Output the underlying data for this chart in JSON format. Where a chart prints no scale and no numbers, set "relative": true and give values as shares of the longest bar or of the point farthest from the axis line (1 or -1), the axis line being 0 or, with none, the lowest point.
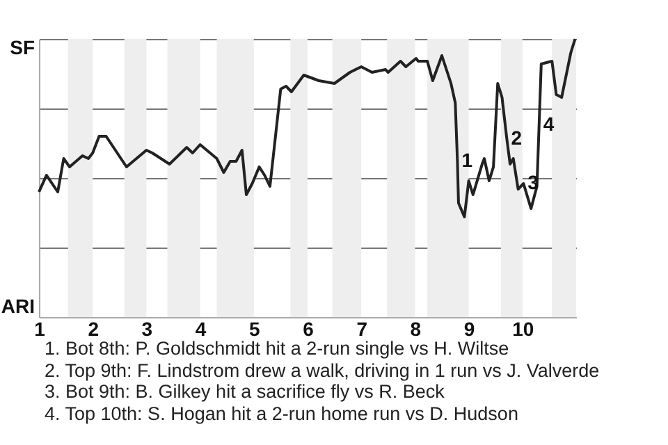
{
  "chart_data": {
    "type": "line",
    "relative": true,
    "x": [
      1.0,
      1.14,
      1.35,
      1.46,
      1.57,
      1.81,
      1.92,
      2.0,
      2.12,
      2.25,
      2.63,
      3.0,
      3.11,
      3.43,
      3.75,
      3.86,
      4.0,
      4.31,
      4.44,
      4.56,
      4.67,
      4.78,
      4.86,
      4.97,
      5.1,
      5.2,
      5.3,
      5.5,
      5.6,
      5.7,
      5.93,
      6.21,
      6.5,
      6.79,
      7.0,
      7.2,
      7.45,
      7.5,
      7.73,
      7.83,
      8.02,
      8.06,
      8.23,
      8.33,
      8.5,
      8.67,
      8.75,
      8.79,
      8.81,
      8.92,
      9.0,
      9.08,
      9.25,
      9.29,
      9.38,
      9.46,
      9.54,
      9.62,
      9.71,
      9.77,
      9.83,
      9.92,
      10.02,
      10.16,
      10.27,
      10.31,
      10.35,
      10.55,
      10.63,
      10.73,
      10.9,
      10.98
    ],
    "series": [
      {
        "color": "#222222",
        "values": [
          0.45,
          0.51,
          0.45,
          0.57,
          0.54,
          0.58,
          0.57,
          0.59,
          0.65,
          0.65,
          0.54,
          0.6,
          0.59,
          0.55,
          0.61,
          0.59,
          0.62,
          0.57,
          0.52,
          0.56,
          0.56,
          0.6,
          0.44,
          0.48,
          0.54,
          0.51,
          0.47,
          0.82,
          0.83,
          0.81,
          0.87,
          0.85,
          0.84,
          0.88,
          0.9,
          0.88,
          0.89,
          0.88,
          0.92,
          0.9,
          0.93,
          0.92,
          0.92,
          0.85,
          0.94,
          0.84,
          0.77,
          0.56,
          0.41,
          0.36,
          0.49,
          0.44,
          0.55,
          0.57,
          0.49,
          0.54,
          0.84,
          0.79,
          0.64,
          0.55,
          0.57,
          0.46,
          0.48,
          0.39,
          0.47,
          0.69,
          0.91,
          0.92,
          0.8,
          0.79,
          0.95,
          1.0
        ]
      }
    ],
    "xlim": [
      1,
      11
    ],
    "xticks": [
      1,
      2,
      3,
      4,
      5,
      6,
      7,
      8,
      9,
      10
    ],
    "grid": "y",
    "marker": "none",
    "bands": [
      {
        "axis": "x",
        "from": 1.54,
        "to": 2,
        "color": "#eeeeee"
      },
      {
        "axis": "x",
        "from": 2.59,
        "to": 3,
        "color": "#eeeeee"
      },
      {
        "axis": "x",
        "from": 3.39,
        "to": 4,
        "color": "#eeeeee"
      },
      {
        "axis": "x",
        "from": 4.31,
        "to": 5,
        "color": "#eeeeee"
      },
      {
        "axis": "x",
        "from": 5.68,
        "to": 6,
        "color": "#eeeeee"
      },
      {
        "axis": "x",
        "from": 6.46,
        "to": 7,
        "color": "#eeeeee"
      },
      {
        "axis": "x",
        "from": 7.48,
        "to": 8,
        "color": "#eeeeee"
      },
      {
        "axis": "x",
        "from": 8.23,
        "to": 9,
        "color": "#eeeeee"
      },
      {
        "axis": "x",
        "from": 9.6,
        "to": 10,
        "color": "#eeeeee"
      },
      {
        "axis": "x",
        "from": 10.55,
        "to": 11,
        "color": "#eeeeee"
      }
    ],
    "annotations": [
      "SF",
      "ARI",
      {
        "text": "1",
        "x": 8.79,
        "y": 0.56
      },
      {
        "text": "2",
        "x": 9.71,
        "y": 0.64
      },
      {
        "text": "3",
        "x": 10.02,
        "y": 0.48
      },
      {
        "text": "4",
        "x": 10.31,
        "y": 0.69
      },
      "1. Bot 8th: P. Goldschmidt hit a 2-run single vs H. Wiltse",
      "2. Top 9th: F. Lindstrom drew a walk, driving in 1 run vs J. Valverde",
      "3. Bot 9th: B. Gilkey hit a sacrifice fly vs R. Beck",
      "4. Top 10th: S. Hogan hit a 2-run home run vs D. Hudson"
    ]
  }
}
